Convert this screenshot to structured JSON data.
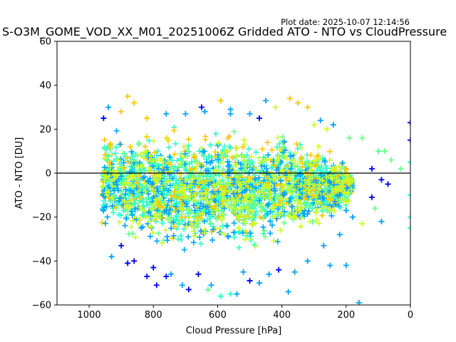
{
  "chart_data": {
    "type": "scatter",
    "title": "S-O3M_GOME_VOD_XX_M01_20251006Z Gridded ATO - NTO vs CloudPressure",
    "plot_date": "Plot date: 2025-10-07 12:14:56",
    "xlabel": "Cloud Pressure [hPa]",
    "ylabel": "ATO - NTO [DU]",
    "xlim": [
      1100,
      0
    ],
    "ylim": [
      -60,
      60
    ],
    "x_ticks": [
      1000,
      800,
      600,
      400,
      200,
      0
    ],
    "y_ticks": [
      -60,
      -40,
      -20,
      0,
      20,
      40,
      60
    ],
    "x_tick_labels": [
      "1000",
      "800",
      "600",
      "400",
      "200",
      "0"
    ],
    "y_tick_labels": [
      "−60",
      "−40",
      "−20",
      "0",
      "20",
      "40",
      "60"
    ],
    "reference_line_y": 0,
    "marker": "plus",
    "colors": [
      "#0000ff",
      "#00a4ff",
      "#2affca",
      "#6dff8a",
      "#caff2a",
      "#ffc800"
    ],
    "grid": false,
    "legend": "none",
    "points": [
      [
        955,
        25,
        0
      ],
      [
        940,
        30,
        1
      ],
      [
        880,
        35,
        5
      ],
      [
        860,
        32,
        5
      ],
      [
        900,
        28,
        5
      ],
      [
        820,
        25,
        5
      ],
      [
        760,
        27,
        1
      ],
      [
        700,
        27,
        1
      ],
      [
        640,
        28,
        1
      ],
      [
        590,
        33,
        5
      ],
      [
        560,
        27,
        1
      ],
      [
        500,
        27,
        1
      ],
      [
        450,
        33,
        1
      ],
      [
        420,
        30,
        4
      ],
      [
        375,
        34,
        5
      ],
      [
        350,
        32,
        5
      ],
      [
        320,
        30,
        5
      ],
      [
        470,
        25,
        0
      ],
      [
        300,
        22,
        4
      ],
      [
        280,
        24,
        1
      ],
      [
        260,
        20,
        4
      ],
      [
        240,
        22,
        1
      ],
      [
        190,
        16,
        3
      ],
      [
        150,
        16,
        3
      ],
      [
        100,
        10,
        3
      ],
      [
        80,
        10,
        3
      ],
      [
        60,
        6,
        3
      ],
      [
        30,
        2,
        3
      ],
      [
        0,
        23,
        0
      ],
      [
        0,
        15,
        0
      ],
      [
        0,
        5,
        2
      ],
      [
        0,
        -10,
        2
      ],
      [
        0,
        -20,
        2
      ],
      [
        0,
        -25,
        2
      ],
      [
        120,
        2,
        0
      ],
      [
        90,
        -3,
        0
      ],
      [
        70,
        -5,
        0
      ],
      [
        120,
        -11,
        0
      ],
      [
        110,
        -16,
        3
      ],
      [
        90,
        -22,
        1
      ],
      [
        150,
        -23,
        4
      ],
      [
        180,
        -20,
        1
      ],
      [
        200,
        -17,
        1
      ],
      [
        220,
        -28,
        1
      ],
      [
        270,
        -33,
        1
      ],
      [
        320,
        -40,
        1
      ],
      [
        360,
        -45,
        1
      ],
      [
        410,
        -44,
        0
      ],
      [
        440,
        -46,
        1
      ],
      [
        470,
        -50,
        1
      ],
      [
        500,
        -49,
        0
      ],
      [
        540,
        -55,
        1
      ],
      [
        560,
        -55,
        2
      ],
      [
        590,
        -56,
        2
      ],
      [
        630,
        -53,
        3
      ],
      [
        660,
        -46,
        0
      ],
      [
        690,
        -53,
        0
      ],
      [
        710,
        -51,
        1
      ],
      [
        745,
        -46,
        1
      ],
      [
        790,
        -51,
        0
      ],
      [
        820,
        -47,
        0
      ],
      [
        860,
        -40,
        0
      ],
      [
        880,
        -41,
        0
      ],
      [
        900,
        -33,
        0
      ],
      [
        930,
        -38,
        1
      ],
      [
        160,
        -59,
        1
      ],
      [
        200,
        -42,
        1
      ],
      [
        250,
        -42,
        1
      ],
      [
        380,
        -54,
        1
      ],
      [
        760,
        -47,
        0
      ],
      [
        800,
        -43,
        0
      ],
      [
        620,
        -51,
        1
      ],
      [
        520,
        -45,
        1
      ],
      [
        650,
        30,
        0
      ],
      [
        560,
        29,
        1
      ]
    ],
    "density_band": {
      "x_range": [
        960,
        180
      ],
      "upper_boundary": [
        [
          960,
          22
        ],
        [
          900,
          22
        ],
        [
          800,
          22
        ],
        [
          700,
          24
        ],
        [
          600,
          25
        ],
        [
          500,
          21
        ],
        [
          400,
          20
        ],
        [
          300,
          18
        ],
        [
          250,
          12
        ],
        [
          200,
          6
        ],
        [
          180,
          0
        ]
      ],
      "lower_boundary": [
        [
          960,
          -25
        ],
        [
          900,
          -35
        ],
        [
          800,
          -37
        ],
        [
          700,
          -40
        ],
        [
          600,
          -40
        ],
        [
          500,
          -38
        ],
        [
          400,
          -32
        ],
        [
          300,
          -28
        ],
        [
          250,
          -25
        ],
        [
          200,
          -18
        ],
        [
          180,
          -10
        ]
      ],
      "core_color": "#2affca",
      "secondary_colors": [
        "#00a4ff",
        "#6dff8a",
        "#caff2a",
        "#ffc800"
      ]
    }
  }
}
